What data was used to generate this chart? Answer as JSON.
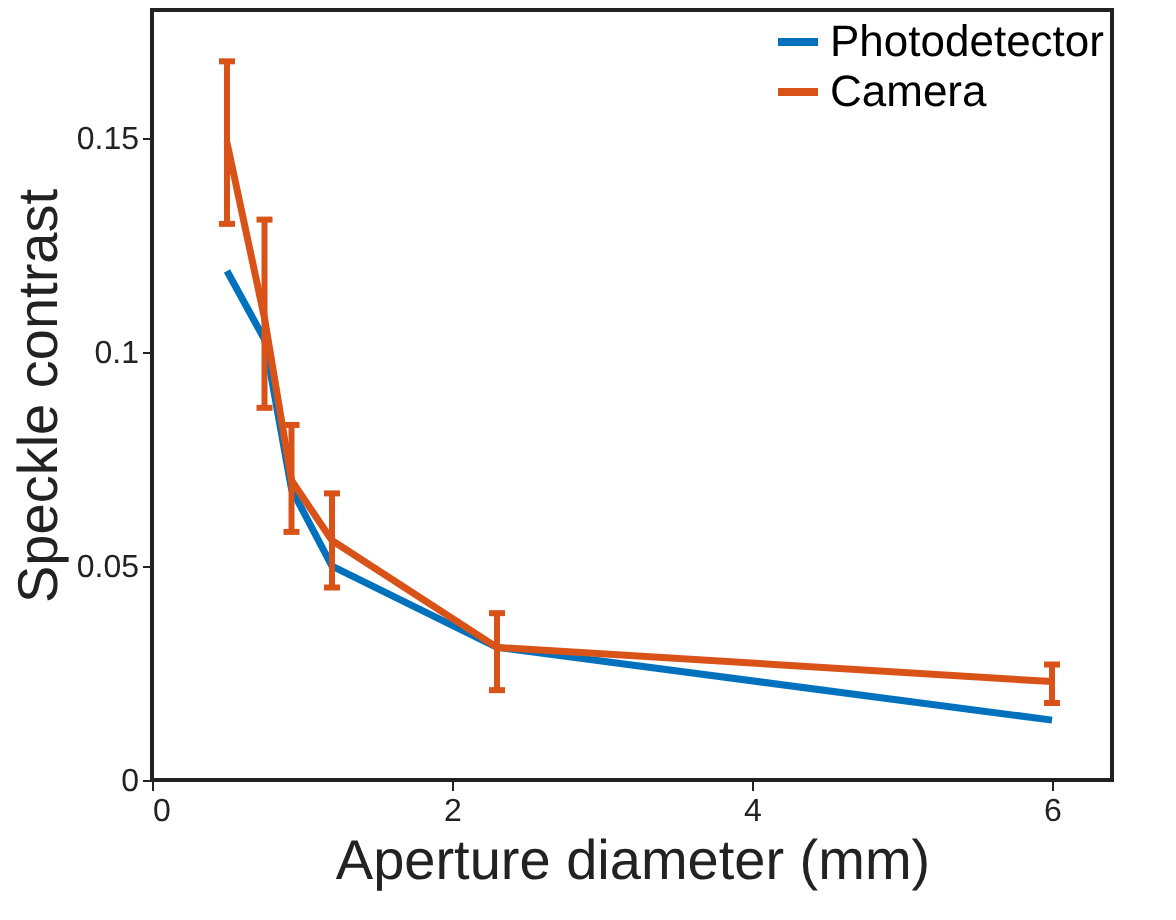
{
  "chart_data": {
    "type": "line",
    "xlabel": "Aperture diameter (mm)",
    "ylabel": "Speckle contrast",
    "x": [
      0.5,
      0.75,
      0.93,
      1.2,
      2.3,
      6
    ],
    "series": [
      {
        "name": "Photodetector",
        "color": "#0072bd",
        "values": [
          0.119,
          0.103,
          0.068,
          0.05,
          0.031,
          0.014
        ]
      },
      {
        "name": "Camera",
        "color": "#d95319",
        "values": [
          0.149,
          0.108,
          0.07,
          0.056,
          0.031,
          0.023
        ],
        "errors": [
          [
            0.13,
            0.168
          ],
          [
            0.087,
            0.131
          ],
          [
            0.058,
            0.083
          ],
          [
            0.045,
            0.067
          ],
          [
            0.021,
            0.039
          ],
          [
            0.018,
            0.027
          ]
        ]
      }
    ],
    "xlim": [
      0,
      6.4
    ],
    "xticks": [
      0,
      2,
      4,
      6
    ],
    "ylim": [
      0,
      0.18
    ],
    "yticks": [
      0,
      0.05,
      0.1,
      0.15
    ],
    "grid": false,
    "legend": "top right",
    "marker": "none",
    "line_style": "solid"
  }
}
